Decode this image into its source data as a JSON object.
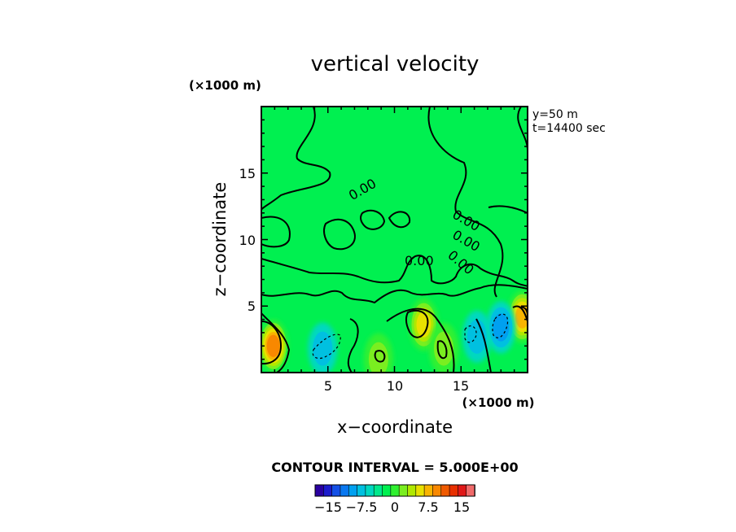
{
  "chart_data": {
    "type": "heatmap",
    "title": "vertical velocity",
    "xlabel": "x−coordinate",
    "ylabel": "z−coordinate",
    "x_unit": "(×1000 m)",
    "z_unit": "(×1000 m)",
    "xlim": [
      0,
      20
    ],
    "zlim": [
      0,
      20
    ],
    "xticks": [
      5,
      10,
      15
    ],
    "zticks": [
      5,
      10,
      15
    ],
    "xtick_labels": [
      "5",
      "10",
      "15"
    ],
    "ztick_labels": [
      "5",
      "10",
      "15"
    ],
    "info": [
      "y=50  m",
      "t=14400 sec"
    ],
    "contour_interval_text": "CONTOUR INTERVAL = 5.000E+00",
    "contour_labels": [
      "0.00",
      "0.00",
      "0.00",
      "0.00",
      "0.00"
    ],
    "colorbar": {
      "min": -20,
      "max": 20,
      "step": 2.5,
      "tick_values": [
        -15,
        -7.5,
        0,
        7.5,
        15
      ],
      "tick_labels": [
        "−15",
        "−7.5",
        "0",
        "7.5",
        "15"
      ],
      "colors": [
        "#2a00a0",
        "#1c1ccc",
        "#1450e6",
        "#0a78f0",
        "#00a0f0",
        "#00c0e0",
        "#00d8c0",
        "#00e88c",
        "#00f050",
        "#30f030",
        "#7aee20",
        "#b0e800",
        "#e8e000",
        "#f8b400",
        "#f88800",
        "#f05a00",
        "#e83000",
        "#e01818",
        "#f06a6a"
      ]
    },
    "background_value": 0,
    "features": [
      {
        "kind": "updraft",
        "x": 0.9,
        "z": 2.0,
        "peak": 15
      },
      {
        "kind": "updraft",
        "x": 12.2,
        "z": 3.6,
        "peak": 9
      },
      {
        "kind": "updraft",
        "x": 13.7,
        "z": 1.8,
        "peak": 6
      },
      {
        "kind": "updraft",
        "x": 8.8,
        "z": 1.0,
        "peak": 5
      },
      {
        "kind": "updraft",
        "x": 19.6,
        "z": 4.2,
        "peak": 12
      },
      {
        "kind": "downdraft",
        "x": 4.6,
        "z": 1.8,
        "peak": -6
      },
      {
        "kind": "downdraft",
        "x": 16.2,
        "z": 2.7,
        "peak": -6
      },
      {
        "kind": "downdraft",
        "x": 18.0,
        "z": 3.4,
        "peak": -7
      }
    ]
  }
}
